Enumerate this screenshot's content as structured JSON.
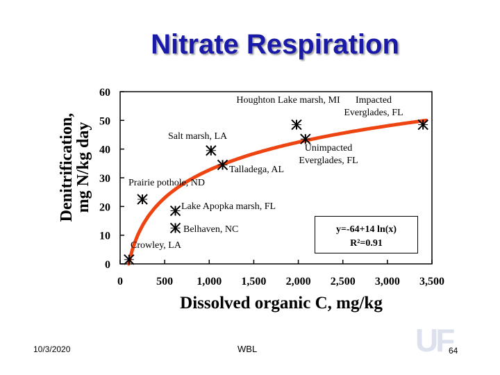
{
  "slide": {
    "title": "Nitrate Respiration",
    "date": "10/3/2020",
    "org": "WBL",
    "page": "64",
    "logo_text": "UF",
    "title_color": "#1a1aa8"
  },
  "chart_data": {
    "type": "scatter",
    "title": "Nitrate Respiration",
    "xlabel": "Dissolved organic C, mg/kg",
    "ylabel_lines": [
      "Denitrification,",
      "mg N/kg day"
    ],
    "xlim": [
      0,
      3500
    ],
    "ylim": [
      0,
      60
    ],
    "x_ticks": [
      0,
      500,
      1000,
      1500,
      2000,
      2500,
      3000,
      3500
    ],
    "x_tick_labels": [
      "0",
      "500",
      "1,000",
      "1,500",
      "2,000",
      "2,500",
      "3,000",
      "3,500"
    ],
    "y_ticks": [
      0,
      10,
      20,
      30,
      40,
      50,
      60
    ],
    "y_tick_labels": [
      "0",
      "10",
      "20",
      "30",
      "40",
      "50",
      "60"
    ],
    "points": [
      {
        "x": 100,
        "y": 1.5,
        "label": "Crowley, LA"
      },
      {
        "x": 250,
        "y": 22.5,
        "label": "Prairie pothole, ND"
      },
      {
        "x": 620,
        "y": 18.5,
        "label": "Lake Apopka marsh, FL"
      },
      {
        "x": 620,
        "y": 12.5,
        "label": "Belhaven, NC"
      },
      {
        "x": 1020,
        "y": 39.5,
        "label": "Salt marsh, LA"
      },
      {
        "x": 1150,
        "y": 34.5,
        "label": "Talladega, AL"
      },
      {
        "x": 1980,
        "y": 48.5,
        "label": "Houghton Lake marsh, MI"
      },
      {
        "x": 2080,
        "y": 43.5,
        "label": "Unimpacted Everglades, FL"
      },
      {
        "x": 3400,
        "y": 48.5,
        "label": "Impacted Everglades, FL"
      }
    ],
    "fit": {
      "a": -64,
      "b": 14,
      "model": "y = a + b ln(x)",
      "equation_text": "y=-64+14 ln(x)",
      "r2_text": "R²=0.91",
      "color": "#ee4411"
    },
    "marker_color": "#000000",
    "legend": "none"
  }
}
